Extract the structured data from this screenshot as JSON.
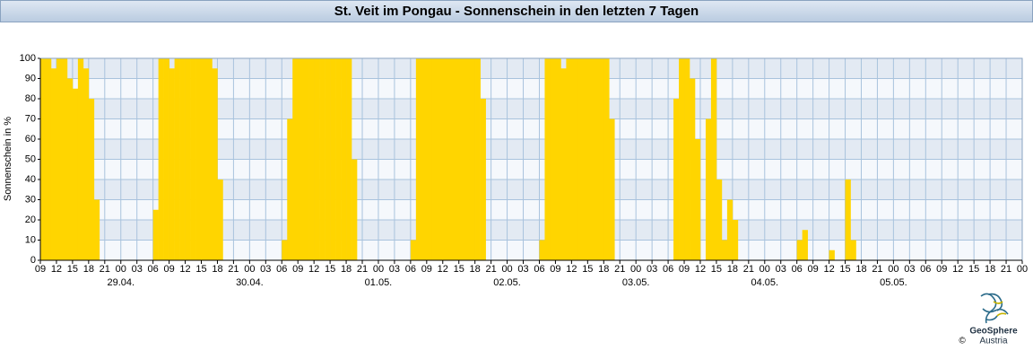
{
  "chart_data": {
    "type": "bar",
    "title": "St. Veit im Pongau - Sonnenschein in den letzten 7 Tagen",
    "y_label": "Sonnenschein in %",
    "color": "#ffd500",
    "grid": true,
    "ylim": [
      0,
      100
    ],
    "yticks": [
      0,
      10,
      20,
      30,
      40,
      50,
      60,
      70,
      80,
      90,
      100
    ],
    "categories": [
      "09",
      null,
      null,
      "12",
      null,
      null,
      "15",
      null,
      null,
      "18",
      null,
      null,
      "21",
      null,
      null,
      [
        "00",
        "29.04."
      ],
      null,
      null,
      "03",
      null,
      null,
      "06",
      null,
      null,
      "09",
      null,
      null,
      "12",
      null,
      null,
      "15",
      null,
      null,
      "18",
      null,
      null,
      "21",
      null,
      null,
      [
        "00",
        "30.04."
      ],
      null,
      null,
      "03",
      null,
      null,
      "06",
      null,
      null,
      "09",
      null,
      null,
      "12",
      null,
      null,
      "15",
      null,
      null,
      "18",
      null,
      null,
      "21",
      null,
      null,
      [
        "00",
        "01.05."
      ],
      null,
      null,
      "03",
      null,
      null,
      "06",
      null,
      null,
      "09",
      null,
      null,
      "12",
      null,
      null,
      "15",
      null,
      null,
      "18",
      null,
      null,
      "21",
      null,
      null,
      [
        "00",
        "02.05."
      ],
      null,
      null,
      "03",
      null,
      null,
      "06",
      null,
      null,
      "09",
      null,
      null,
      "12",
      null,
      null,
      "15",
      null,
      null,
      "18",
      null,
      null,
      "21",
      null,
      null,
      [
        "00",
        "03.05."
      ],
      null,
      null,
      "03",
      null,
      null,
      "06",
      null,
      null,
      "09",
      null,
      null,
      "12",
      null,
      null,
      "15",
      null,
      null,
      "18",
      null,
      null,
      "21",
      null,
      null,
      [
        "00",
        "04.05."
      ],
      null,
      null,
      "03",
      null,
      null,
      "06",
      null,
      null,
      "09",
      null,
      null,
      "12",
      null,
      null,
      "15",
      null,
      null,
      "18",
      null,
      null,
      "21",
      null,
      null,
      [
        "00",
        "05.05."
      ],
      null,
      null,
      "03",
      null,
      null,
      "06",
      null,
      null,
      "09",
      null,
      null,
      "12",
      null,
      null,
      "15",
      null,
      null,
      "18",
      null,
      null,
      "21",
      null,
      null,
      "00"
    ],
    "values": [
      100,
      100,
      95,
      100,
      100,
      90,
      85,
      100,
      95,
      80,
      30,
      0,
      0,
      0,
      0,
      0,
      0,
      0,
      0,
      0,
      0,
      25,
      100,
      100,
      95,
      100,
      100,
      100,
      100,
      100,
      100,
      100,
      95,
      40,
      0,
      0,
      0,
      0,
      0,
      0,
      0,
      0,
      0,
      0,
      0,
      10,
      70,
      100,
      100,
      100,
      100,
      100,
      100,
      100,
      100,
      100,
      100,
      100,
      50,
      0,
      0,
      0,
      0,
      0,
      0,
      0,
      0,
      0,
      0,
      10,
      100,
      100,
      100,
      100,
      100,
      100,
      100,
      100,
      100,
      100,
      100,
      100,
      80,
      0,
      0,
      0,
      0,
      0,
      0,
      0,
      0,
      0,
      0,
      10,
      100,
      100,
      100,
      95,
      100,
      100,
      100,
      100,
      100,
      100,
      100,
      100,
      70,
      0,
      0,
      0,
      0,
      0,
      0,
      0,
      0,
      0,
      0,
      0,
      80,
      100,
      100,
      90,
      60,
      0,
      70,
      100,
      40,
      10,
      30,
      20,
      0,
      0,
      0,
      0,
      0,
      0,
      0,
      0,
      0,
      0,
      0,
      10,
      15,
      0,
      0,
      0,
      0,
      5,
      0,
      0,
      40,
      10,
      0,
      0,
      0,
      0,
      0,
      0,
      0,
      0,
      0,
      0,
      0,
      0,
      0,
      0,
      0,
      0,
      0,
      0,
      0,
      0,
      0,
      0,
      0,
      0,
      0,
      0,
      0,
      0,
      0,
      0,
      0,
      null
    ]
  },
  "logo": {
    "name": "GeoSphere",
    "sub": "Austria",
    "copyright": "©"
  }
}
